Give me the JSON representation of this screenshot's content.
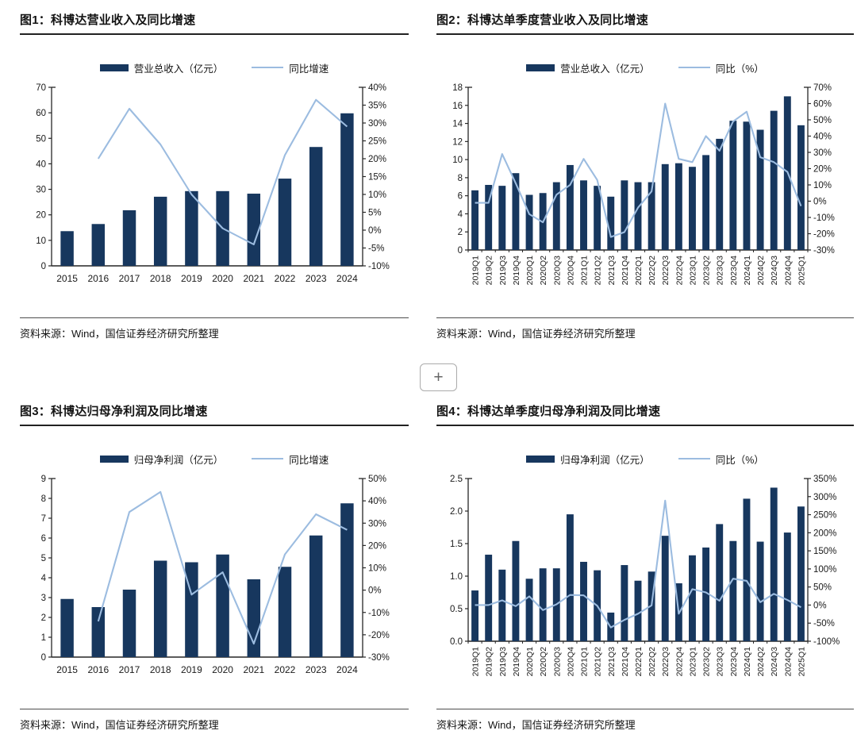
{
  "page": {
    "background": "#ffffff"
  },
  "colors": {
    "bar": "#17375E",
    "line": "#9CBCE0",
    "axis": "#262626",
    "tick_text": "#1a1a1a",
    "title_rule": "#222222",
    "source_rule": "#4d4d4d"
  },
  "plus_button": {
    "label": "+"
  },
  "charts": [
    {
      "title": "图1：科博达营业收入及同比增速",
      "legend_bar": "营业总收入（亿元）",
      "legend_line": "同比增速",
      "source": "资料来源：Wind，国信证券经济研究所整理",
      "chart_data": {
        "type": "bar",
        "categories": [
          "2015",
          "2016",
          "2017",
          "2018",
          "2019",
          "2020",
          "2021",
          "2022",
          "2023",
          "2024"
        ],
        "series": [
          {
            "name": "营业总收入（亿元）",
            "kind": "bar",
            "axis": "left",
            "values": [
              13.6,
              16.4,
              21.8,
              27.1,
              29.3,
              29.3,
              28.3,
              34.2,
              46.6,
              59.8
            ]
          },
          {
            "name": "同比增速",
            "kind": "line",
            "axis": "right",
            "values": [
              null,
              20,
              34,
              24,
              10,
              0.5,
              -4,
              21,
              36.5,
              29
            ]
          }
        ],
        "left_axis": {
          "min": 0,
          "max": 70,
          "step": 10,
          "decimals": 0
        },
        "right_axis": {
          "min": -10,
          "max": 40,
          "step": 5,
          "unit": "%"
        },
        "grid": false,
        "legend_position": "top"
      }
    },
    {
      "title": "图2：科博达单季度营业收入及同比增速",
      "legend_bar": "营业总收入（亿元）",
      "legend_line": "同比（%）",
      "source": "资料来源：Wind，国信证券经济研究所整理",
      "chart_data": {
        "type": "bar",
        "categories": [
          "2019Q1",
          "2019Q2",
          "2019Q3",
          "2019Q4",
          "2020Q1",
          "2020Q2",
          "2020Q3",
          "2020Q4",
          "2021Q1",
          "2021Q2",
          "2021Q3",
          "2021Q4",
          "2022Q1",
          "2022Q2",
          "2022Q3",
          "2022Q4",
          "2023Q1",
          "2023Q2",
          "2023Q3",
          "2023Q4",
          "2024Q1",
          "2024Q2",
          "2024Q3",
          "2024Q4",
          "2025Q1"
        ],
        "series": [
          {
            "name": "营业总收入（亿元）",
            "kind": "bar",
            "axis": "left",
            "values": [
              6.6,
              7.2,
              7.1,
              8.5,
              6.1,
              6.3,
              7.5,
              9.4,
              7.7,
              7.1,
              5.9,
              7.7,
              7.5,
              7.5,
              9.5,
              9.6,
              9.2,
              10.5,
              12.3,
              14.3,
              14.2,
              13.3,
              15.4,
              17.0,
              13.8
            ]
          },
          {
            "name": "同比（%）",
            "kind": "line",
            "axis": "right",
            "values": [
              -1,
              -1,
              29,
              11,
              -8,
              -13,
              4,
              10,
              26,
              13,
              -22,
              -19,
              -4,
              6,
              60,
              26,
              24,
              40,
              31,
              49,
              55,
              27,
              24,
              18,
              -3
            ]
          }
        ],
        "left_axis": {
          "min": 0,
          "max": 18,
          "step": 2,
          "decimals": 0
        },
        "right_axis": {
          "min": -30,
          "max": 70,
          "step": 10,
          "unit": "%"
        },
        "grid": false,
        "legend_position": "top"
      }
    },
    {
      "title": "图3：科博达归母净利润及同比增速",
      "legend_bar": "归母净利润（亿元）",
      "legend_line": "同比增速",
      "source": "资料来源：Wind，国信证券经济研究所整理",
      "chart_data": {
        "type": "bar",
        "categories": [
          "2015",
          "2016",
          "2017",
          "2018",
          "2019",
          "2020",
          "2021",
          "2022",
          "2023",
          "2024"
        ],
        "series": [
          {
            "name": "归母净利润（亿元）",
            "kind": "bar",
            "axis": "left",
            "values": [
              2.93,
              2.52,
              3.4,
              4.86,
              4.78,
              5.17,
              3.92,
              4.55,
              6.13,
              7.75
            ]
          },
          {
            "name": "同比增速",
            "kind": "line",
            "axis": "right",
            "values": [
              null,
              -14,
              35,
              44,
              -2,
              8,
              -24,
              16,
              34,
              27
            ]
          }
        ],
        "left_axis": {
          "min": 0,
          "max": 9,
          "step": 1,
          "decimals": 0
        },
        "right_axis": {
          "min": -30,
          "max": 50,
          "step": 10,
          "unit": "%"
        },
        "grid": false,
        "legend_position": "top"
      }
    },
    {
      "title": "图4：科博达单季度归母净利润及同比增速",
      "legend_bar": "归母净利润（亿元）",
      "legend_line": "同比（%）",
      "source": "资料来源：Wind，国信证券经济研究所整理",
      "chart_data": {
        "type": "bar",
        "categories": [
          "2019Q1",
          "2019Q2",
          "2019Q3",
          "2019Q4",
          "2020Q1",
          "2020Q2",
          "2020Q3",
          "2020Q4",
          "2021Q1",
          "2021Q2",
          "2021Q3",
          "2021Q4",
          "2022Q1",
          "2022Q2",
          "2022Q3",
          "2022Q4",
          "2023Q1",
          "2023Q2",
          "2023Q3",
          "2023Q4",
          "2024Q1",
          "2024Q2",
          "2024Q3",
          "2024Q4",
          "2025Q1"
        ],
        "series": [
          {
            "name": "归母净利润（亿元）",
            "kind": "bar",
            "axis": "left",
            "values": [
              0.78,
              1.33,
              1.1,
              1.54,
              0.96,
              1.12,
              1.12,
              1.95,
              1.22,
              1.09,
              0.44,
              1.17,
              0.93,
              1.07,
              1.62,
              0.89,
              1.32,
              1.44,
              1.8,
              1.54,
              2.19,
              1.53,
              2.36,
              1.67,
              2.07
            ]
          },
          {
            "name": "同比（%）",
            "kind": "line",
            "axis": "right",
            "values": [
              0,
              0,
              13,
              -3,
              24,
              -14,
              2,
              28,
              27,
              -2,
              -62,
              -41,
              -24,
              -1,
              289,
              -24,
              44,
              35,
              12,
              73,
              67,
              8,
              31,
              14,
              -6
            ]
          }
        ],
        "left_axis": {
          "min": 0,
          "max": 2.5,
          "step": 0.5,
          "decimals": 1
        },
        "right_axis": {
          "min": -100,
          "max": 350,
          "step": 50,
          "unit": "%"
        },
        "grid": false,
        "legend_position": "top"
      }
    }
  ]
}
